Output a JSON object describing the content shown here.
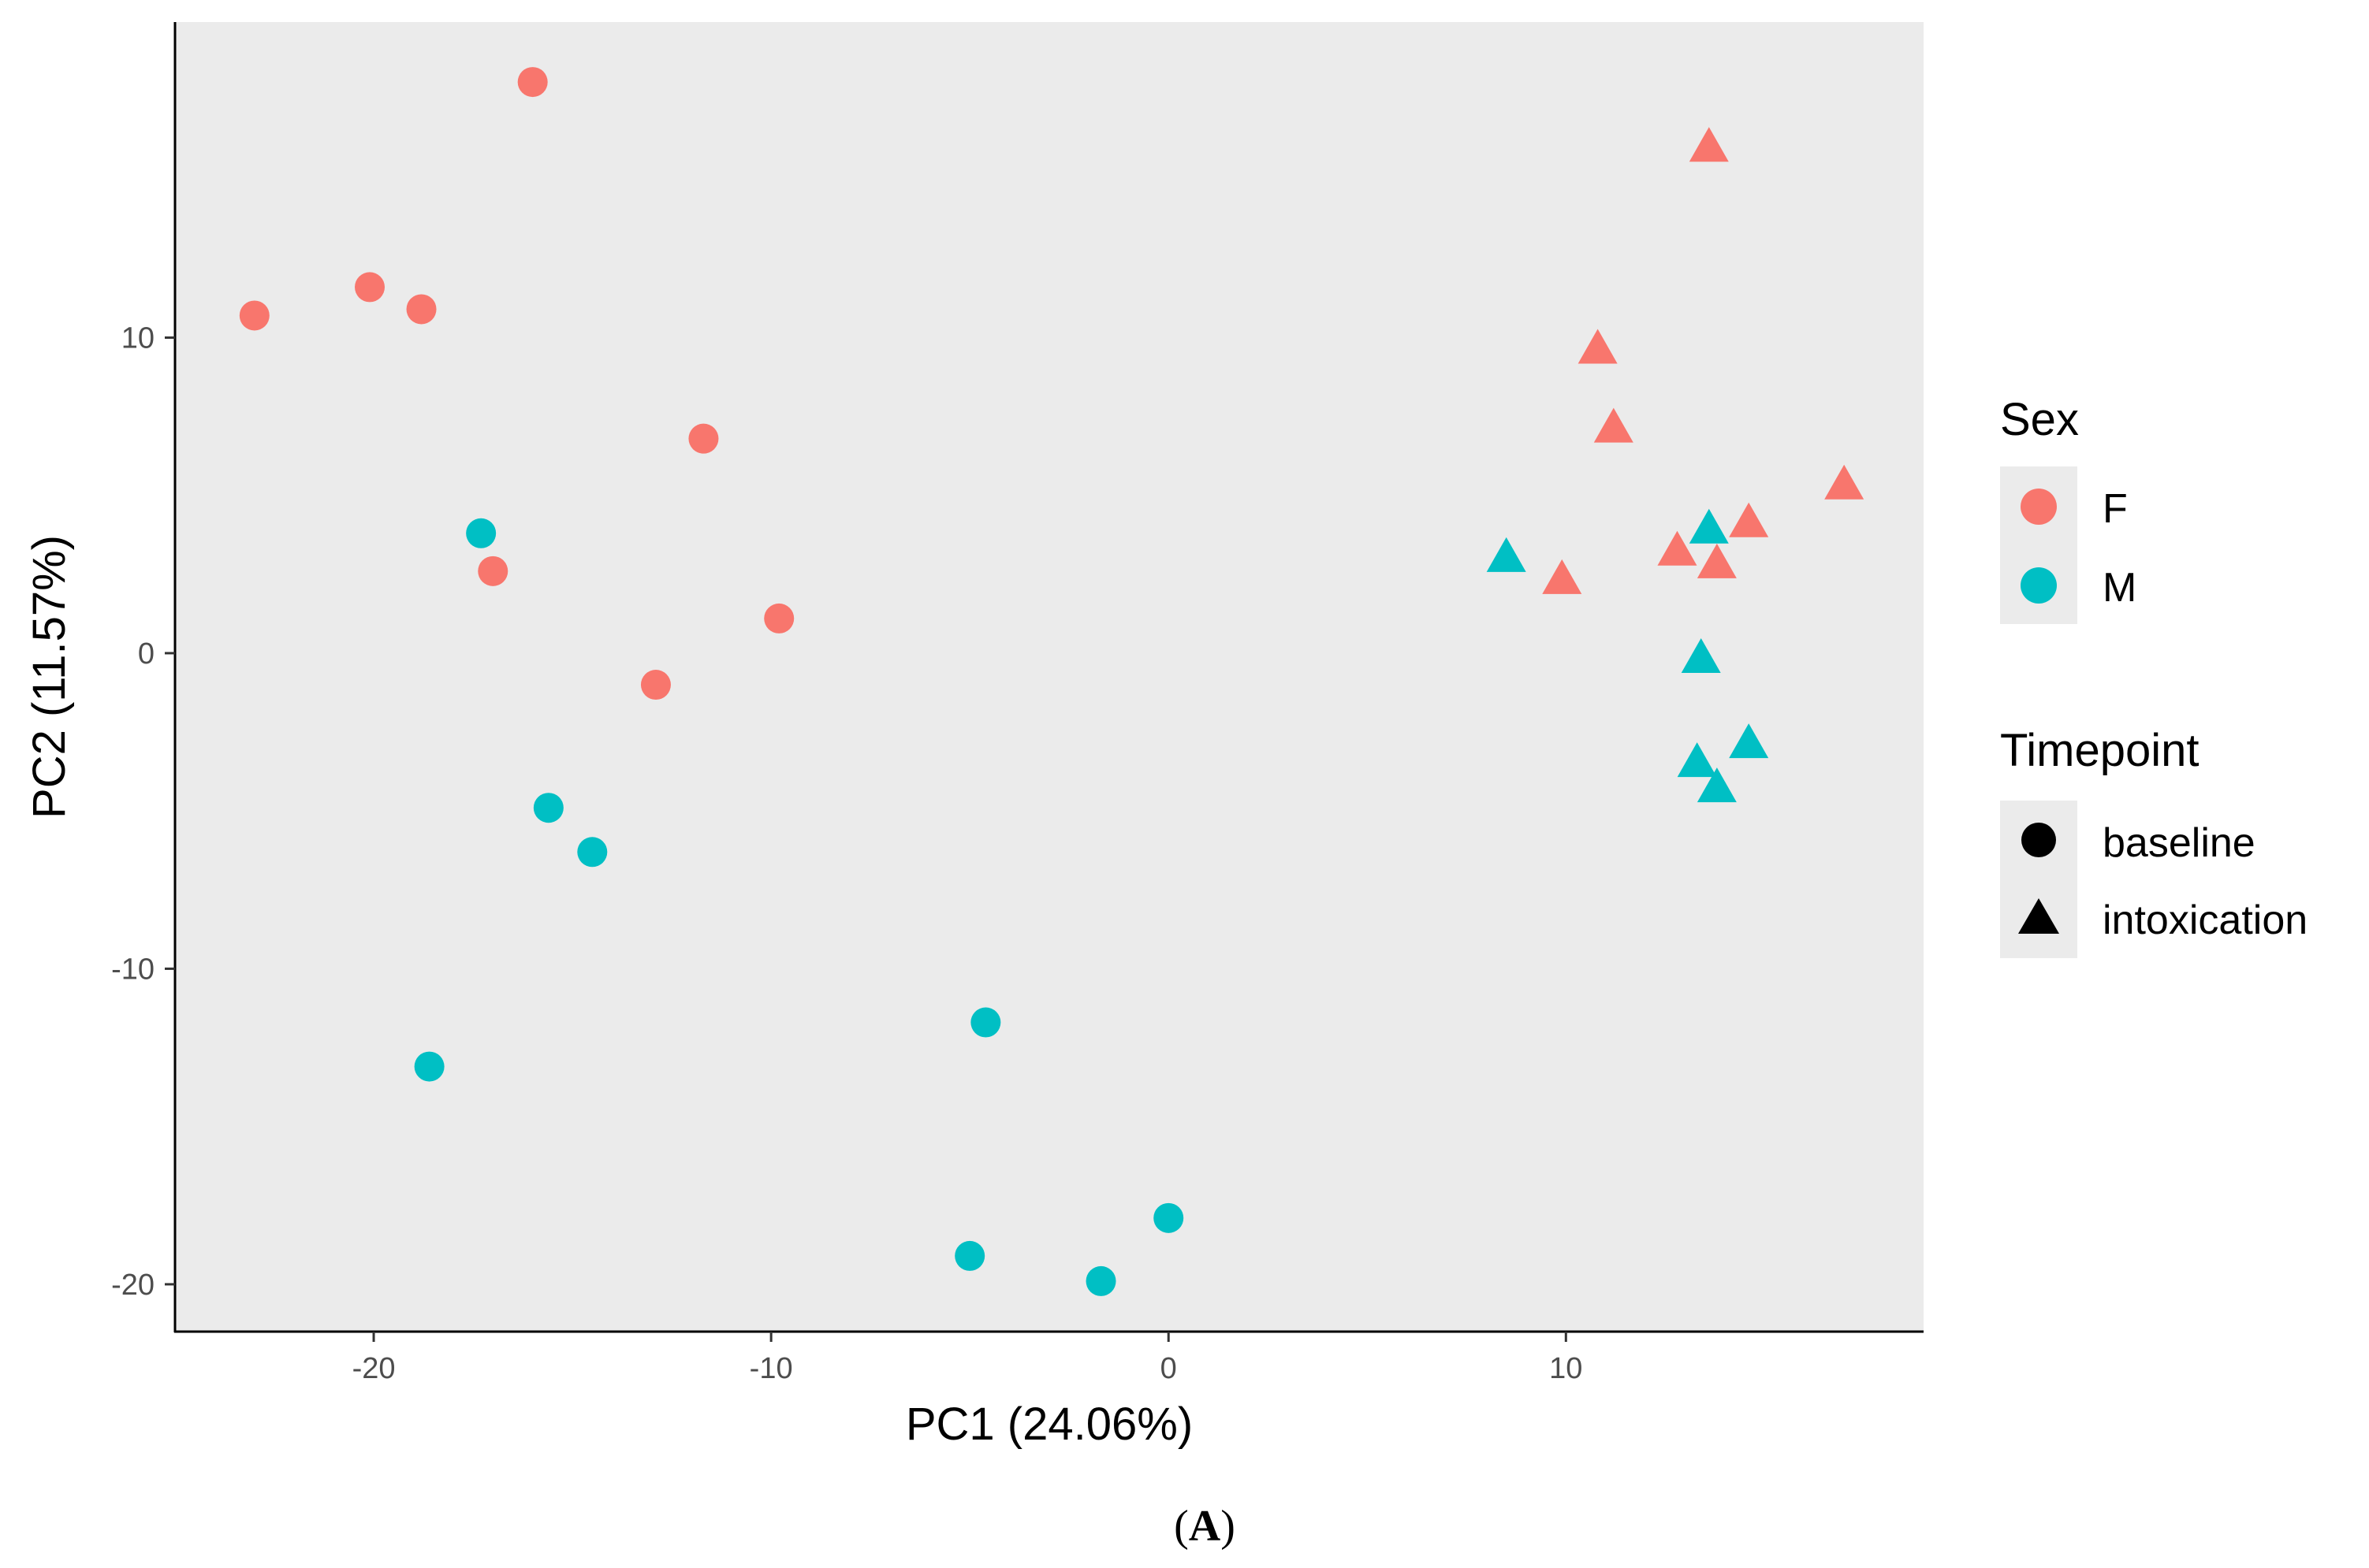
{
  "chart_data": {
    "type": "scatter",
    "xlabel": "PC1 (24.06%)",
    "ylabel": "PC2 (11.57%)",
    "panel_label": {
      "open": "(",
      "letter": "A",
      "close": ")"
    },
    "xlim": [
      -25,
      19
    ],
    "ylim": [
      -21.5,
      20
    ],
    "x_ticks": [
      -20,
      -10,
      0,
      10
    ],
    "x_tick_labels": [
      "-20",
      "-10",
      "0",
      "10"
    ],
    "y_ticks": [
      10,
      0,
      -10,
      -20
    ],
    "y_tick_labels": [
      "10",
      "0",
      "-10",
      "-20"
    ],
    "panel_background": "#ebebeb",
    "colors": {
      "F": "#f8766d",
      "M": "#00bfc4"
    },
    "legend": {
      "sex": {
        "title": "Sex",
        "items": [
          {
            "key": "F",
            "label": "F"
          },
          {
            "key": "M",
            "label": "M"
          }
        ]
      },
      "timepoint": {
        "title": "Timepoint",
        "items": [
          {
            "key": "baseline",
            "label": "baseline",
            "shape": "circle"
          },
          {
            "key": "intoxication",
            "label": "intoxication",
            "shape": "triangle"
          }
        ]
      },
      "placement": "right"
    },
    "points": [
      {
        "x": -16.0,
        "y": 18.1,
        "sex": "F",
        "timepoint": "baseline"
      },
      {
        "x": -23.0,
        "y": 10.7,
        "sex": "F",
        "timepoint": "baseline"
      },
      {
        "x": -20.1,
        "y": 11.6,
        "sex": "F",
        "timepoint": "baseline"
      },
      {
        "x": -18.8,
        "y": 10.9,
        "sex": "F",
        "timepoint": "baseline"
      },
      {
        "x": -11.7,
        "y": 6.8,
        "sex": "F",
        "timepoint": "baseline"
      },
      {
        "x": -17.0,
        "y": 2.6,
        "sex": "F",
        "timepoint": "baseline"
      },
      {
        "x": -9.8,
        "y": 1.1,
        "sex": "F",
        "timepoint": "baseline"
      },
      {
        "x": -12.9,
        "y": -1.0,
        "sex": "F",
        "timepoint": "baseline"
      },
      {
        "x": -17.3,
        "y": 3.8,
        "sex": "M",
        "timepoint": "baseline"
      },
      {
        "x": -15.6,
        "y": -4.9,
        "sex": "M",
        "timepoint": "baseline"
      },
      {
        "x": -14.5,
        "y": -6.3,
        "sex": "M",
        "timepoint": "baseline"
      },
      {
        "x": -18.6,
        "y": -13.1,
        "sex": "M",
        "timepoint": "baseline"
      },
      {
        "x": -4.6,
        "y": -11.7,
        "sex": "M",
        "timepoint": "baseline"
      },
      {
        "x": -5.0,
        "y": -19.1,
        "sex": "M",
        "timepoint": "baseline"
      },
      {
        "x": -1.7,
        "y": -19.9,
        "sex": "M",
        "timepoint": "baseline"
      },
      {
        "x": 0.0,
        "y": -17.9,
        "sex": "M",
        "timepoint": "baseline"
      },
      {
        "x": 13.6,
        "y": 16.0,
        "sex": "F",
        "timepoint": "intoxication"
      },
      {
        "x": 10.8,
        "y": 9.6,
        "sex": "F",
        "timepoint": "intoxication"
      },
      {
        "x": 11.2,
        "y": 7.1,
        "sex": "F",
        "timepoint": "intoxication"
      },
      {
        "x": 17.0,
        "y": 5.3,
        "sex": "F",
        "timepoint": "intoxication"
      },
      {
        "x": 14.6,
        "y": 4.1,
        "sex": "F",
        "timepoint": "intoxication"
      },
      {
        "x": 12.8,
        "y": 3.2,
        "sex": "F",
        "timepoint": "intoxication"
      },
      {
        "x": 13.8,
        "y": 2.8,
        "sex": "F",
        "timepoint": "intoxication"
      },
      {
        "x": 9.9,
        "y": 2.3,
        "sex": "F",
        "timepoint": "intoxication"
      },
      {
        "x": 8.5,
        "y": 3.0,
        "sex": "M",
        "timepoint": "intoxication"
      },
      {
        "x": 13.6,
        "y": 3.9,
        "sex": "M",
        "timepoint": "intoxication"
      },
      {
        "x": 13.4,
        "y": -0.2,
        "sex": "M",
        "timepoint": "intoxication"
      },
      {
        "x": 14.6,
        "y": -2.9,
        "sex": "M",
        "timepoint": "intoxication"
      },
      {
        "x": 13.3,
        "y": -3.5,
        "sex": "M",
        "timepoint": "intoxication"
      },
      {
        "x": 13.8,
        "y": -4.3,
        "sex": "M",
        "timepoint": "intoxication"
      }
    ]
  }
}
